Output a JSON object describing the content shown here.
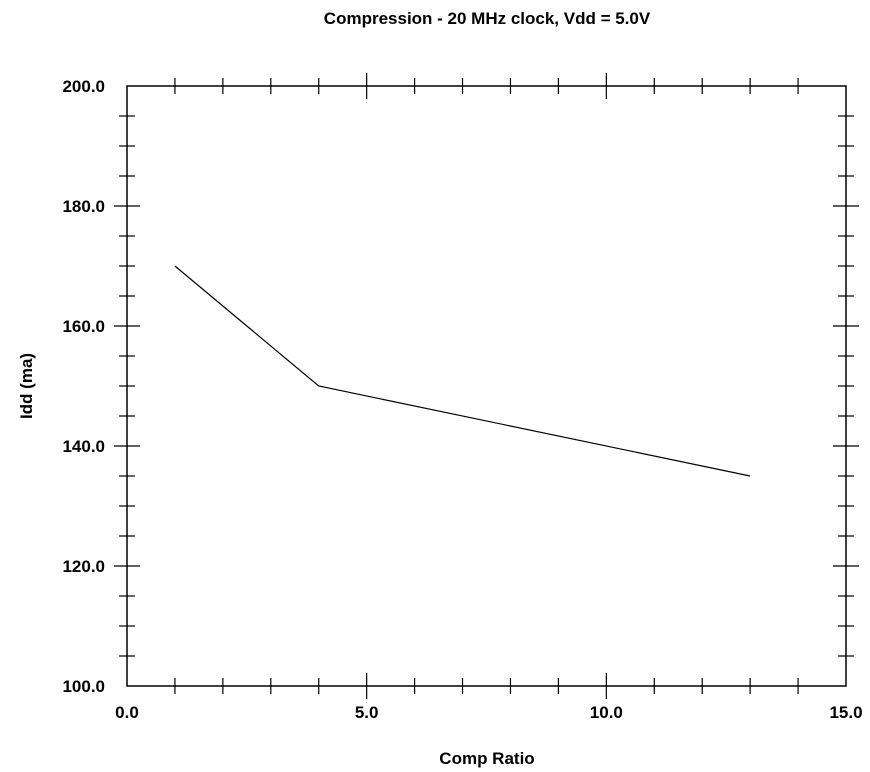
{
  "chart_data": {
    "type": "line",
    "title": "Compression - 20 MHz clock, Vdd = 5.0V",
    "xlabel": "Comp Ratio",
    "ylabel": "Idd (ma)",
    "xlim": [
      0,
      15
    ],
    "ylim": [
      100,
      200
    ],
    "x_ticks": [
      0,
      5,
      10,
      15
    ],
    "x_tick_labels": [
      "0.0",
      "5.0",
      "10.0",
      "15.0"
    ],
    "x_minor_step": 1,
    "y_ticks": [
      100,
      120,
      140,
      160,
      180,
      200
    ],
    "y_tick_labels": [
      "100.0",
      "120.0",
      "140.0",
      "160.0",
      "180.0",
      "200.0"
    ],
    "y_minor_step": 5,
    "grid": false,
    "series": [
      {
        "x": [
          1,
          4,
          13
        ],
        "y": [
          170,
          150,
          135
        ]
      }
    ]
  }
}
